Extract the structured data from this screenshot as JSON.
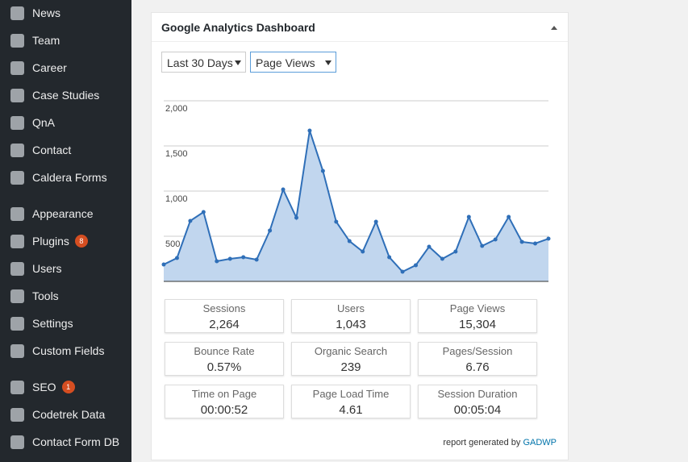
{
  "sidebar": {
    "items": [
      {
        "label": "News"
      },
      {
        "label": "Team"
      },
      {
        "label": "Career"
      },
      {
        "label": "Case Studies"
      },
      {
        "label": "QnA"
      },
      {
        "label": "Contact"
      },
      {
        "label": "Caldera Forms"
      },
      {
        "label": "Appearance"
      },
      {
        "label": "Plugins",
        "badge": "8"
      },
      {
        "label": "Users"
      },
      {
        "label": "Tools"
      },
      {
        "label": "Settings"
      },
      {
        "label": "Custom Fields"
      },
      {
        "label": "SEO",
        "badge": "1"
      },
      {
        "label": "Codetrek Data"
      },
      {
        "label": "Contact Form DB"
      }
    ]
  },
  "widget": {
    "title": "Google Analytics Dashboard",
    "period_select": "Last 30 Days",
    "metric_select": "Page Views",
    "stats": [
      {
        "label": "Sessions",
        "value": "2,264"
      },
      {
        "label": "Users",
        "value": "1,043"
      },
      {
        "label": "Page Views",
        "value": "15,304"
      },
      {
        "label": "Bounce Rate",
        "value": "0.57%"
      },
      {
        "label": "Organic Search",
        "value": "239"
      },
      {
        "label": "Pages/Session",
        "value": "6.76"
      },
      {
        "label": "Time on Page",
        "value": "00:00:52"
      },
      {
        "label": "Page Load Time",
        "value": "4.61"
      },
      {
        "label": "Session Duration",
        "value": "00:05:04"
      }
    ],
    "footer_text": "report generated by",
    "footer_link": "GADWP"
  },
  "chart_data": {
    "type": "area",
    "values": [
      187,
      259,
      670,
      768,
      223,
      250,
      268,
      241,
      563,
      1018,
      705,
      1670,
      1223,
      661,
      446,
      330,
      661,
      268,
      107,
      179,
      384,
      250,
      330,
      714,
      393,
      464,
      714,
      438,
      420,
      473
    ],
    "ylim": [
      0,
      2000
    ],
    "yticks": [
      500,
      {
        "value": 1000,
        "label": "1,000"
      },
      {
        "value": 1500,
        "label": "1,500"
      },
      {
        "value": 2000,
        "label": "2,000"
      }
    ],
    "grid": true,
    "color": "#2f6fb8",
    "fill_color": "#c1d6ee"
  }
}
